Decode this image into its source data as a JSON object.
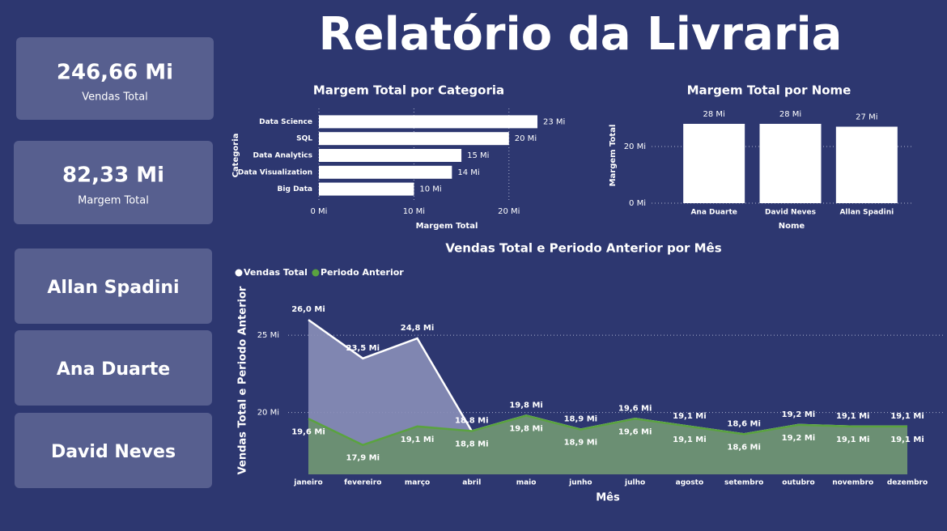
{
  "title": "Relatório da Livraria",
  "cards": [
    {
      "value": "246,66 Mi",
      "label": "Vendas Total"
    },
    {
      "value": "82,33 Mi",
      "label": "Margem Total"
    }
  ],
  "slicer": [
    "Allan Spadini",
    "Ana Duarte",
    "David Neves"
  ],
  "chart_data": [
    {
      "type": "bar",
      "orientation": "horizontal",
      "title": "Margem Total por Categoria",
      "x_label": "Margem Total",
      "y_label": "Categoria",
      "categories": [
        "Data Science",
        "SQL",
        "Data Analytics",
        "Data Visualization",
        "Big Data"
      ],
      "values": [
        23,
        20,
        15,
        14,
        10
      ],
      "value_labels": [
        "23 Mi",
        "20 Mi",
        "15 Mi",
        "14 Mi",
        "10 Mi"
      ],
      "color": "#ffffff",
      "xlim": [
        0,
        23
      ],
      "xticks": [
        {
          "value": 0,
          "label": "0 Mi"
        },
        {
          "value": 10,
          "label": "10 Mi"
        },
        {
          "value": 20,
          "label": "20 Mi"
        }
      ],
      "grid": true
    },
    {
      "type": "bar",
      "orientation": "vertical",
      "title": "Margem Total por Nome",
      "x_label": "Nome",
      "y_label": "Margem Total",
      "categories": [
        "Ana Duarte",
        "David Neves",
        "Allan Spadini"
      ],
      "values": [
        28,
        28,
        27
      ],
      "value_labels": [
        "28 Mi",
        "28 Mi",
        "27 Mi"
      ],
      "color": "#ffffff",
      "ylim": [
        0,
        30
      ],
      "yticks": [
        {
          "value": 0,
          "label": "0 Mi"
        },
        {
          "value": 20,
          "label": "20 Mi"
        }
      ],
      "grid": true
    },
    {
      "type": "area",
      "title": "Vendas Total e Periodo Anterior por Mês",
      "x_label": "Mês",
      "y_label": "Vendas Total e Periodo Anterior",
      "categories": [
        "janeiro",
        "fevereiro",
        "março",
        "abril",
        "maio",
        "junho",
        "julho",
        "agosto",
        "setembro",
        "outubro",
        "novembro",
        "dezembro"
      ],
      "series": [
        {
          "name": "Vendas Total",
          "color": "#ffffff",
          "fill": "#8a8fb8",
          "values": [
            26.0,
            23.5,
            24.8,
            18.8,
            19.8,
            18.9,
            19.6,
            19.1,
            18.6,
            19.2,
            19.1,
            19.1
          ],
          "value_labels": [
            "26,0 Mi",
            "23,5 Mi",
            "24,8 Mi",
            "18,8 Mi",
            "19,8 Mi",
            "18,9 Mi",
            "19,6 Mi",
            "19,1 Mi",
            "18,6 Mi",
            "19,2 Mi",
            "19,1 Mi",
            "19,1 Mi"
          ]
        },
        {
          "name": "Periodo Anterior",
          "color": "#5aa33f",
          "fill": "#6b8f73",
          "values": [
            19.6,
            17.9,
            19.1,
            18.8,
            19.8,
            18.9,
            19.6,
            19.1,
            18.6,
            19.2,
            19.1,
            19.1
          ],
          "value_labels": [
            "19,6 Mi",
            "17,9 Mi",
            "19,1 Mi",
            "18,8 Mi",
            "19,8 Mi",
            "18,9 Mi",
            "19,6 Mi",
            "19,1 Mi",
            "18,6 Mi",
            "19,2 Mi",
            "19,1 Mi",
            "19,1 Mi"
          ]
        }
      ],
      "ylim": [
        16,
        27
      ],
      "yticks": [
        {
          "value": 20,
          "label": "20 Mi"
        },
        {
          "value": 25,
          "label": "25 Mi"
        }
      ],
      "grid": true,
      "legend": "top-left"
    }
  ]
}
